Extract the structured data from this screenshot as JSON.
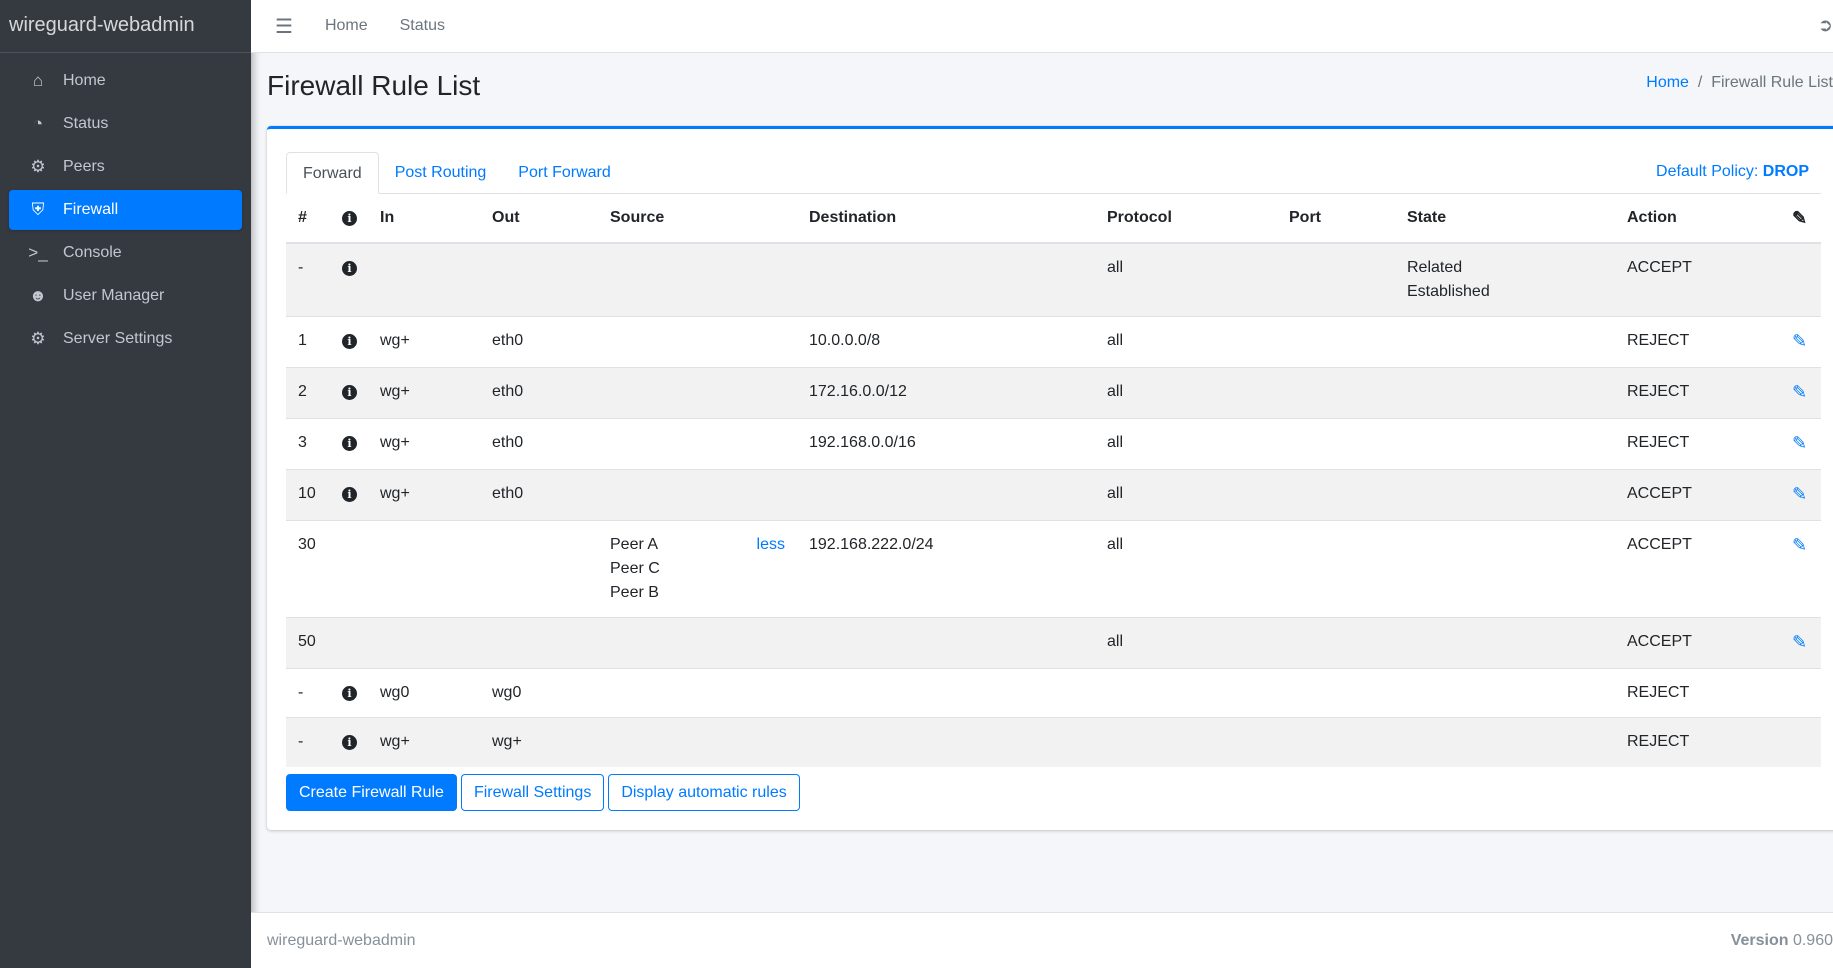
{
  "app": {
    "brand": "wireguard-webadmin"
  },
  "sidebar": {
    "items": [
      {
        "label": "Home",
        "icon": "home-icon"
      },
      {
        "label": "Status",
        "icon": "gauge-icon"
      },
      {
        "label": "Peers",
        "icon": "users-cog-icon"
      },
      {
        "label": "Firewall",
        "icon": "shield-icon",
        "active": true
      },
      {
        "label": "Console",
        "icon": "terminal-icon"
      },
      {
        "label": "User Manager",
        "icon": "users-icon"
      },
      {
        "label": "Server Settings",
        "icon": "gears-icon"
      }
    ]
  },
  "topbar": {
    "links": [
      "Home",
      "Status"
    ]
  },
  "page": {
    "title": "Firewall Rule List",
    "breadcrumb": {
      "home": "Home",
      "sep": "/",
      "current": "Firewall Rule List"
    }
  },
  "tabs": [
    "Forward",
    "Post Routing",
    "Port Forward"
  ],
  "policy": {
    "label": "Default Policy:",
    "value": "DROP"
  },
  "table": {
    "headers": [
      "#",
      "",
      "In",
      "Out",
      "Source",
      "Destination",
      "Protocol",
      "Port",
      "State",
      "Action"
    ],
    "rows": [
      {
        "num": "-",
        "info": true,
        "in": "",
        "out": "",
        "source": [],
        "dest": "",
        "proto": "all",
        "port": "",
        "state": [
          "Related",
          "Established"
        ],
        "action": "ACCEPT",
        "edit": false
      },
      {
        "num": "1",
        "info": true,
        "in": "wg+",
        "out": "eth0",
        "source": [],
        "dest": "10.0.0.0/8",
        "proto": "all",
        "port": "",
        "state": [],
        "action": "REJECT",
        "edit": true
      },
      {
        "num": "2",
        "info": true,
        "in": "wg+",
        "out": "eth0",
        "source": [],
        "dest": "172.16.0.0/12",
        "proto": "all",
        "port": "",
        "state": [],
        "action": "REJECT",
        "edit": true
      },
      {
        "num": "3",
        "info": true,
        "in": "wg+",
        "out": "eth0",
        "source": [],
        "dest": "192.168.0.0/16",
        "proto": "all",
        "port": "",
        "state": [],
        "action": "REJECT",
        "edit": true
      },
      {
        "num": "10",
        "info": true,
        "in": "wg+",
        "out": "eth0",
        "source": [],
        "dest": "",
        "proto": "all",
        "port": "",
        "state": [],
        "action": "ACCEPT",
        "edit": true
      },
      {
        "num": "30",
        "info": false,
        "in": "",
        "out": "",
        "source": [
          "Peer A",
          "Peer C",
          "Peer B"
        ],
        "less": "less",
        "dest": "192.168.222.0/24",
        "proto": "all",
        "port": "",
        "state": [],
        "action": "ACCEPT",
        "edit": true
      },
      {
        "num": "50",
        "info": false,
        "in": "",
        "out": "",
        "source": [],
        "dest": "",
        "proto": "all",
        "port": "",
        "state": [],
        "action": "ACCEPT",
        "edit": true
      },
      {
        "num": "-",
        "info": true,
        "in": "wg0",
        "out": "wg0",
        "source": [],
        "dest": "",
        "proto": "",
        "port": "",
        "state": [],
        "action": "REJECT",
        "edit": false
      },
      {
        "num": "-",
        "info": true,
        "in": "wg+",
        "out": "wg+",
        "source": [],
        "dest": "",
        "proto": "",
        "port": "",
        "state": [],
        "action": "REJECT",
        "edit": false
      }
    ]
  },
  "buttons": {
    "create": "Create Firewall Rule",
    "settings": "Firewall Settings",
    "auto": "Display automatic rules"
  },
  "footer": {
    "left": "wireguard-webadmin",
    "version_label": "Version",
    "version": "0.960"
  },
  "colors": {
    "accent": "#007bff",
    "sidebar": "#343a40"
  }
}
